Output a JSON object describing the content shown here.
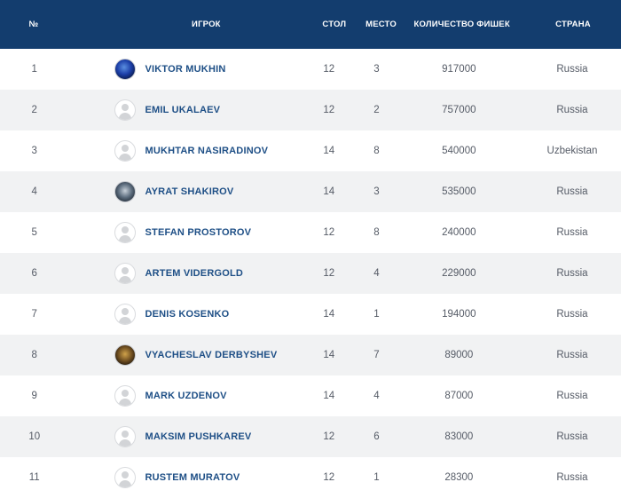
{
  "headers": {
    "num": "№",
    "player": "ИГРОК",
    "table": "СТОЛ",
    "place": "МЕСТО",
    "chips": "КОЛИЧЕСТВО ФИШЕК",
    "country": "СТРАНА"
  },
  "rows": [
    {
      "num": "1",
      "player": "VIKTOR MUKHIN",
      "table": "12",
      "place": "3",
      "chips": "917000",
      "country": "Russia"
    },
    {
      "num": "2",
      "player": "EMIL UKALAEV",
      "table": "12",
      "place": "2",
      "chips": "757000",
      "country": "Russia"
    },
    {
      "num": "3",
      "player": "MUKHTAR NASIRADINOV",
      "table": "14",
      "place": "8",
      "chips": "540000",
      "country": "Uzbekistan"
    },
    {
      "num": "4",
      "player": "AYRAT SHAKIROV",
      "table": "14",
      "place": "3",
      "chips": "535000",
      "country": "Russia"
    },
    {
      "num": "5",
      "player": "STEFAN PROSTOROV",
      "table": "12",
      "place": "8",
      "chips": "240000",
      "country": "Russia"
    },
    {
      "num": "6",
      "player": "ARTEM VIDERGOLD",
      "table": "12",
      "place": "4",
      "chips": "229000",
      "country": "Russia"
    },
    {
      "num": "7",
      "player": "DENIS KOSENKO",
      "table": "14",
      "place": "1",
      "chips": "194000",
      "country": "Russia"
    },
    {
      "num": "8",
      "player": "VYACHESLAV DERBYSHEV",
      "table": "14",
      "place": "7",
      "chips": "89000",
      "country": "Russia"
    },
    {
      "num": "9",
      "player": "MARK UZDENOV",
      "table": "14",
      "place": "4",
      "chips": "87000",
      "country": "Russia"
    },
    {
      "num": "10",
      "player": "MAKSIM PUSHKAREV",
      "table": "12",
      "place": "6",
      "chips": "83000",
      "country": "Russia"
    },
    {
      "num": "11",
      "player": "RUSTEM MURATOV",
      "table": "12",
      "place": "1",
      "chips": "28300",
      "country": "Russia"
    }
  ]
}
